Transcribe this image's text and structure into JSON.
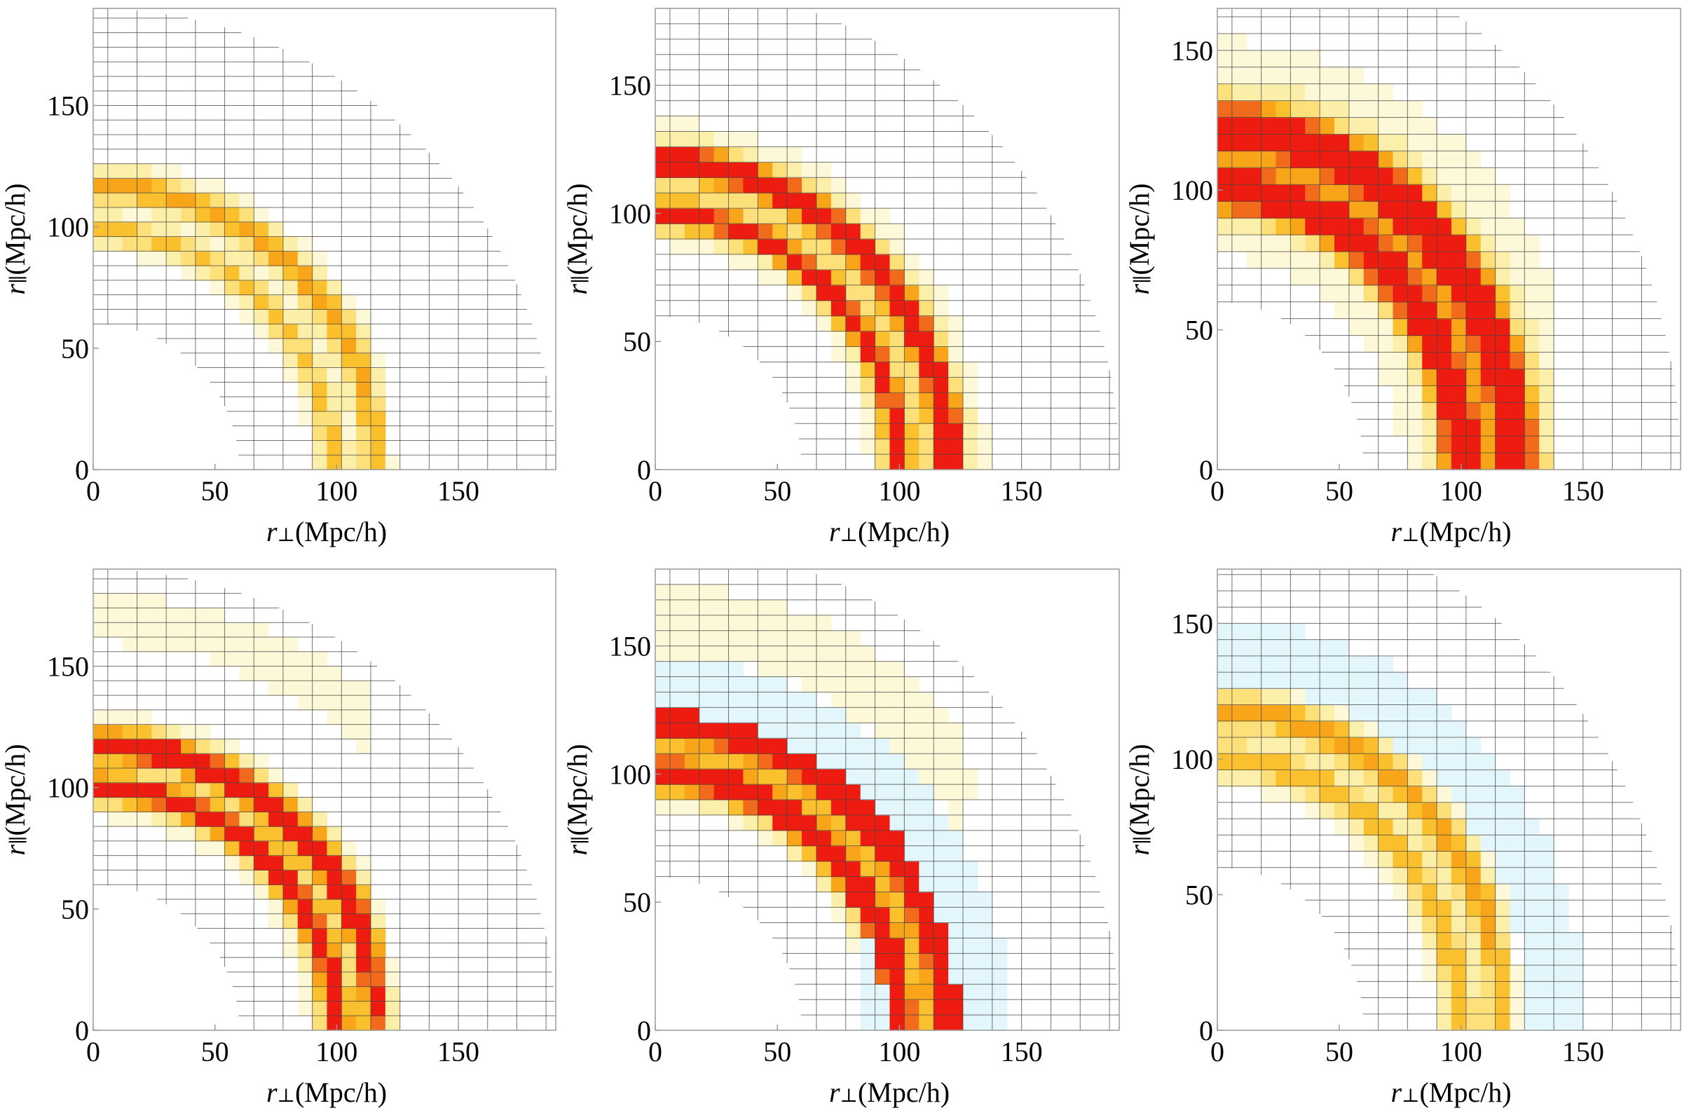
{
  "figure": {
    "layout": "2 rows x 3 columns",
    "colors": {
      "very_low": "#fdf8d8",
      "low": "#fcefaa",
      "mid": "#fde07a",
      "gold": "#fbc02d",
      "orange": "#f9a51a",
      "dark_orange": "#f26a1b",
      "red": "#ee1c10",
      "negative": "#e3f6fb",
      "grid": "#444444",
      "frame": "#9a9a9a"
    }
  },
  "chart_data": [
    {
      "type": "heatmap",
      "panel": "top-left",
      "xlabel": "r⊥(Mpc/h)",
      "ylabel": "r∥(Mpc/h)",
      "xlim": [
        0,
        190
      ],
      "ylim": [
        0,
        190
      ],
      "xticks": [
        "0",
        "50",
        "100",
        "150"
      ],
      "yticks": [
        "0",
        "50",
        "100",
        "150"
      ],
      "bin_size": 6,
      "mask_rmin": 60,
      "mask_rmax": 200,
      "z_max": 1.0,
      "inner_ring_offset": 0.8,
      "features": [
        {
          "radius": 117,
          "amplitude": 0.55,
          "width": 4
        },
        {
          "radius": 98,
          "amplitude": 0.38,
          "width": 3.5
        },
        {
          "radius": 108,
          "amplitude": 0.1,
          "width": 16
        }
      ],
      "x_ridge_limit": 115,
      "negative_regions": []
    },
    {
      "type": "heatmap",
      "panel": "top-middle",
      "xlabel": "r⊥(Mpc/h)",
      "ylabel": "r∥(Mpc/h)",
      "xlim": [
        0,
        190
      ],
      "ylim": [
        0,
        180
      ],
      "xticks": [
        "0",
        "50",
        "100",
        "150"
      ],
      "yticks": [
        "0",
        "50",
        "100",
        "150"
      ],
      "bin_size": 6,
      "mask_rmin": 60,
      "mask_rmax": 200,
      "z_max": 1.0,
      "inner_ring_offset": 0.8,
      "features": [
        {
          "radius": 120,
          "amplitude": 1.1,
          "width": 4.5
        },
        {
          "radius": 100,
          "amplitude": 0.9,
          "width": 4
        },
        {
          "radius": 112,
          "amplitude": 0.14,
          "width": 18
        }
      ],
      "x_ridge_limit": 135,
      "negative_regions": []
    },
    {
      "type": "heatmap",
      "panel": "top-right",
      "xlabel": "r⊥(Mpc/h)",
      "ylabel": "r∥(Mpc/h)",
      "xlim": [
        0,
        190
      ],
      "ylim": [
        0,
        165
      ],
      "xticks": [
        "0",
        "50",
        "100",
        "150"
      ],
      "yticks": [
        "0",
        "50",
        "100",
        "150"
      ],
      "bin_size": 6,
      "mask_rmin": 60,
      "mask_rmax": 200,
      "z_max": 1.0,
      "inner_ring_offset": 0.6,
      "features": [
        {
          "radius": 122,
          "amplitude": 1.35,
          "width": 6
        },
        {
          "radius": 100,
          "amplitude": 1.2,
          "width": 5.5
        },
        {
          "radius": 115,
          "amplitude": 0.18,
          "width": 26
        }
      ],
      "x_ridge_limit": 135,
      "negative_regions": []
    },
    {
      "type": "heatmap",
      "panel": "bottom-left",
      "xlabel": "r⊥(Mpc/h)",
      "ylabel": "r∥(Mpc/h)",
      "xlim": [
        0,
        190
      ],
      "ylim": [
        0,
        190
      ],
      "xticks": [
        "0",
        "50",
        "100",
        "150"
      ],
      "yticks": [
        "0",
        "50",
        "100",
        "150"
      ],
      "bin_size": 6,
      "mask_rmin": 60,
      "mask_rmax": 200,
      "z_max": 1.0,
      "inner_ring_offset": 0.9,
      "features": [
        {
          "radius": 118,
          "amplitude": 1.1,
          "width": 4.5
        },
        {
          "radius": 100,
          "amplitude": 1.0,
          "width": 4
        },
        {
          "radius": 108,
          "amplitude": 0.12,
          "width": 16
        },
        {
          "radius": 170,
          "amplitude": 0.07,
          "width": 18
        }
      ],
      "x_ridge_limit": 115,
      "negative_regions": []
    },
    {
      "type": "heatmap",
      "panel": "bottom-middle",
      "xlabel": "r⊥(Mpc/h)",
      "ylabel": "r∥(Mpc/h)",
      "xlim": [
        0,
        190
      ],
      "ylim": [
        0,
        180
      ],
      "xticks": [
        "0",
        "50",
        "100",
        "150"
      ],
      "yticks": [
        "0",
        "50",
        "100",
        "150"
      ],
      "bin_size": 6,
      "mask_rmin": 60,
      "mask_rmax": 200,
      "z_max": 1.0,
      "inner_ring_offset": 0.8,
      "features": [
        {
          "radius": 120,
          "amplitude": 1.35,
          "width": 5
        },
        {
          "radius": 100,
          "amplitude": 1.2,
          "width": 4.5
        },
        {
          "radius": 112,
          "amplitude": 0.14,
          "width": 18
        },
        {
          "radius": 162,
          "amplitude": 0.12,
          "width": 10
        }
      ],
      "x_ridge_limit": 125,
      "negative_regions": [
        {
          "r_center": 135,
          "r_width": 9,
          "x_min": 0,
          "x_max": 190
        },
        {
          "r_center": 88,
          "r_width": 6,
          "x_min": 85,
          "x_max": 125
        }
      ]
    },
    {
      "type": "heatmap",
      "panel": "bottom-right",
      "xlabel": "r⊥(Mpc/h)",
      "ylabel": "r∥(Mpc/h)",
      "xlim": [
        0,
        190
      ],
      "ylim": [
        0,
        170
      ],
      "xticks": [
        "0",
        "50",
        "100",
        "150"
      ],
      "yticks": [
        "0",
        "50",
        "100",
        "150"
      ],
      "bin_size": 6,
      "mask_rmin": 60,
      "mask_rmax": 200,
      "z_max": 1.0,
      "inner_ring_offset": 0.9,
      "features": [
        {
          "radius": 118,
          "amplitude": 0.55,
          "width": 4.5
        },
        {
          "radius": 100,
          "amplitude": 0.45,
          "width": 4
        },
        {
          "radius": 108,
          "amplitude": 0.1,
          "width": 16
        }
      ],
      "x_ridge_limit": 115,
      "negative_regions": [
        {
          "r_center": 140,
          "r_width": 10,
          "x_min": 0,
          "x_max": 190
        }
      ]
    }
  ]
}
